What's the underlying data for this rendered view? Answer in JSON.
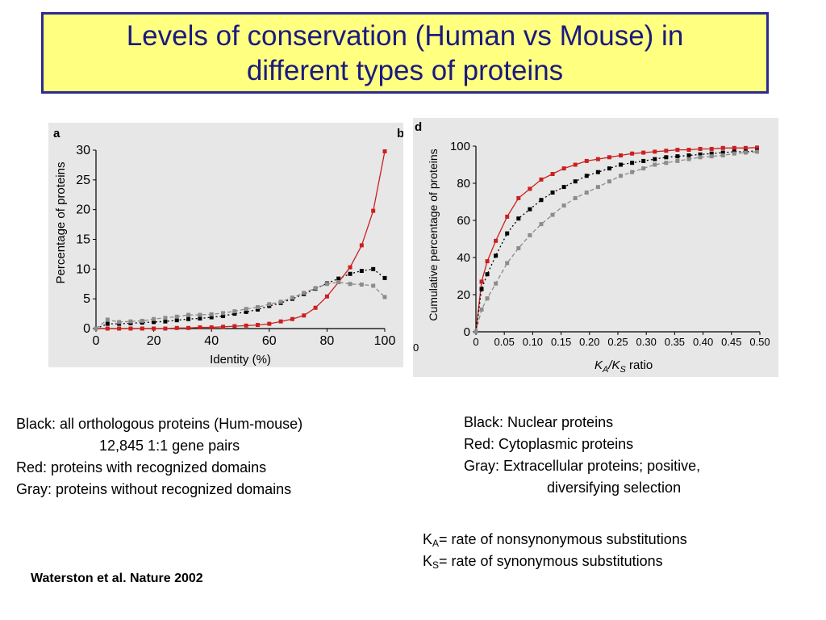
{
  "slide": {
    "title_line1": "Levels of conservation (Human vs Mouse) in",
    "title_line2": "different types of proteins"
  },
  "chart_data": [
    {
      "type": "line",
      "panel_label": "a",
      "panel_label_next": "b",
      "xlabel": "Identity (%)",
      "ylabel": "Percentage of proteins",
      "xlim": [
        0,
        100
      ],
      "ylim": [
        0,
        30
      ],
      "xticks": [
        0,
        20,
        40,
        60,
        80,
        100
      ],
      "yticks": [
        0,
        5,
        10,
        15,
        20,
        25,
        30
      ],
      "x": [
        0,
        4,
        8,
        12,
        16,
        20,
        24,
        28,
        32,
        36,
        40,
        44,
        48,
        52,
        56,
        60,
        64,
        68,
        72,
        76,
        80,
        84,
        88,
        92,
        96,
        100
      ],
      "series": [
        {
          "color": "#000000",
          "style": "dotted",
          "values": [
            0,
            0.8,
            0.8,
            0.9,
            1.0,
            1.1,
            1.2,
            1.4,
            1.6,
            1.7,
            1.9,
            2.1,
            2.5,
            2.8,
            3.2,
            3.8,
            4.3,
            5.0,
            5.8,
            6.7,
            7.6,
            8.4,
            9.2,
            9.7,
            10.0,
            8.5
          ]
        },
        {
          "color": "#cc1f1f",
          "style": "solid",
          "values": [
            0,
            0,
            0,
            0,
            0,
            0,
            0,
            0.1,
            0.1,
            0.2,
            0.2,
            0.3,
            0.4,
            0.5,
            0.6,
            0.8,
            1.2,
            1.6,
            2.2,
            3.5,
            5.4,
            7.8,
            10.3,
            14.0,
            19.8,
            29.8
          ]
        },
        {
          "color": "#8c8c8c",
          "style": "dashed",
          "values": [
            0,
            1.5,
            1.1,
            1.2,
            1.3,
            1.6,
            1.8,
            2.0,
            2.3,
            2.3,
            2.4,
            2.6,
            2.9,
            3.3,
            3.6,
            4.1,
            4.5,
            5.2,
            6.0,
            6.8,
            7.5,
            7.8,
            7.5,
            7.4,
            7.2,
            5.3
          ]
        }
      ]
    },
    {
      "type": "line",
      "panel_label": "d",
      "xlabel_main": "K",
      "xlabel_sub1": "A",
      "xlabel_mid": "/K",
      "xlabel_sub2": "S",
      "xlabel_tail": " ratio",
      "ylabel": "Cumulative percentage of proteins",
      "xlim": [
        0,
        0.5
      ],
      "ylim": [
        0,
        100
      ],
      "xtick_labels": [
        "0",
        "0.05",
        "0.10",
        "0.15",
        "0.20",
        "0.25",
        "0.30",
        "0.35",
        "0.40",
        "0.45",
        "0.50"
      ],
      "xtick_left_stub": "0",
      "yticks": [
        0,
        20,
        40,
        60,
        80,
        100
      ],
      "x": [
        0,
        0.01,
        0.02,
        0.035,
        0.055,
        0.075,
        0.095,
        0.115,
        0.135,
        0.155,
        0.175,
        0.195,
        0.215,
        0.235,
        0.255,
        0.275,
        0.295,
        0.315,
        0.335,
        0.355,
        0.375,
        0.395,
        0.415,
        0.435,
        0.455,
        0.475,
        0.495
      ],
      "series": [
        {
          "color": "#cc1f1f",
          "style": "solid",
          "values": [
            0,
            27,
            38,
            49,
            62,
            72,
            77,
            82,
            85,
            88,
            90,
            92,
            93,
            94,
            95,
            96,
            96.5,
            97,
            97.5,
            98,
            98,
            98.5,
            98.5,
            99,
            99,
            99,
            99.2
          ]
        },
        {
          "color": "#000000",
          "style": "dotted",
          "values": [
            0,
            23,
            31,
            41,
            53,
            61,
            66,
            71,
            75,
            78,
            81,
            84,
            86,
            88,
            90,
            91,
            92,
            93,
            94,
            94.5,
            95,
            95.5,
            96,
            96.5,
            97,
            97,
            97.5
          ]
        },
        {
          "color": "#8c8c8c",
          "style": "dashed",
          "values": [
            0,
            12,
            18,
            26,
            37,
            45,
            52,
            58,
            63,
            68,
            72,
            75,
            78,
            81,
            84,
            86,
            88,
            90,
            91,
            92,
            93,
            94,
            94.5,
            95,
            96,
            96.5,
            97
          ]
        }
      ]
    }
  ],
  "captions": {
    "left": {
      "line1": "Black: all orthologous proteins (Hum-mouse)",
      "line2": "12,845 1:1 gene pairs",
      "line3": "Red: proteins with recognized domains",
      "line4": "Gray: proteins without recognized domains"
    },
    "right": {
      "line1": "Black: Nuclear proteins",
      "line2": "Red: Cytoplasmic proteins",
      "line3": "Gray: Extracellular proteins; positive,",
      "line4": "diversifying selection"
    },
    "ka": {
      "k": "K",
      "sub": "A",
      "text": "= rate of nonsynonymous substitutions"
    },
    "ks": {
      "k": "K",
      "sub": "S",
      "text": "= rate of synonymous substitutions"
    }
  },
  "citation": "Waterston et al. Nature 2002"
}
